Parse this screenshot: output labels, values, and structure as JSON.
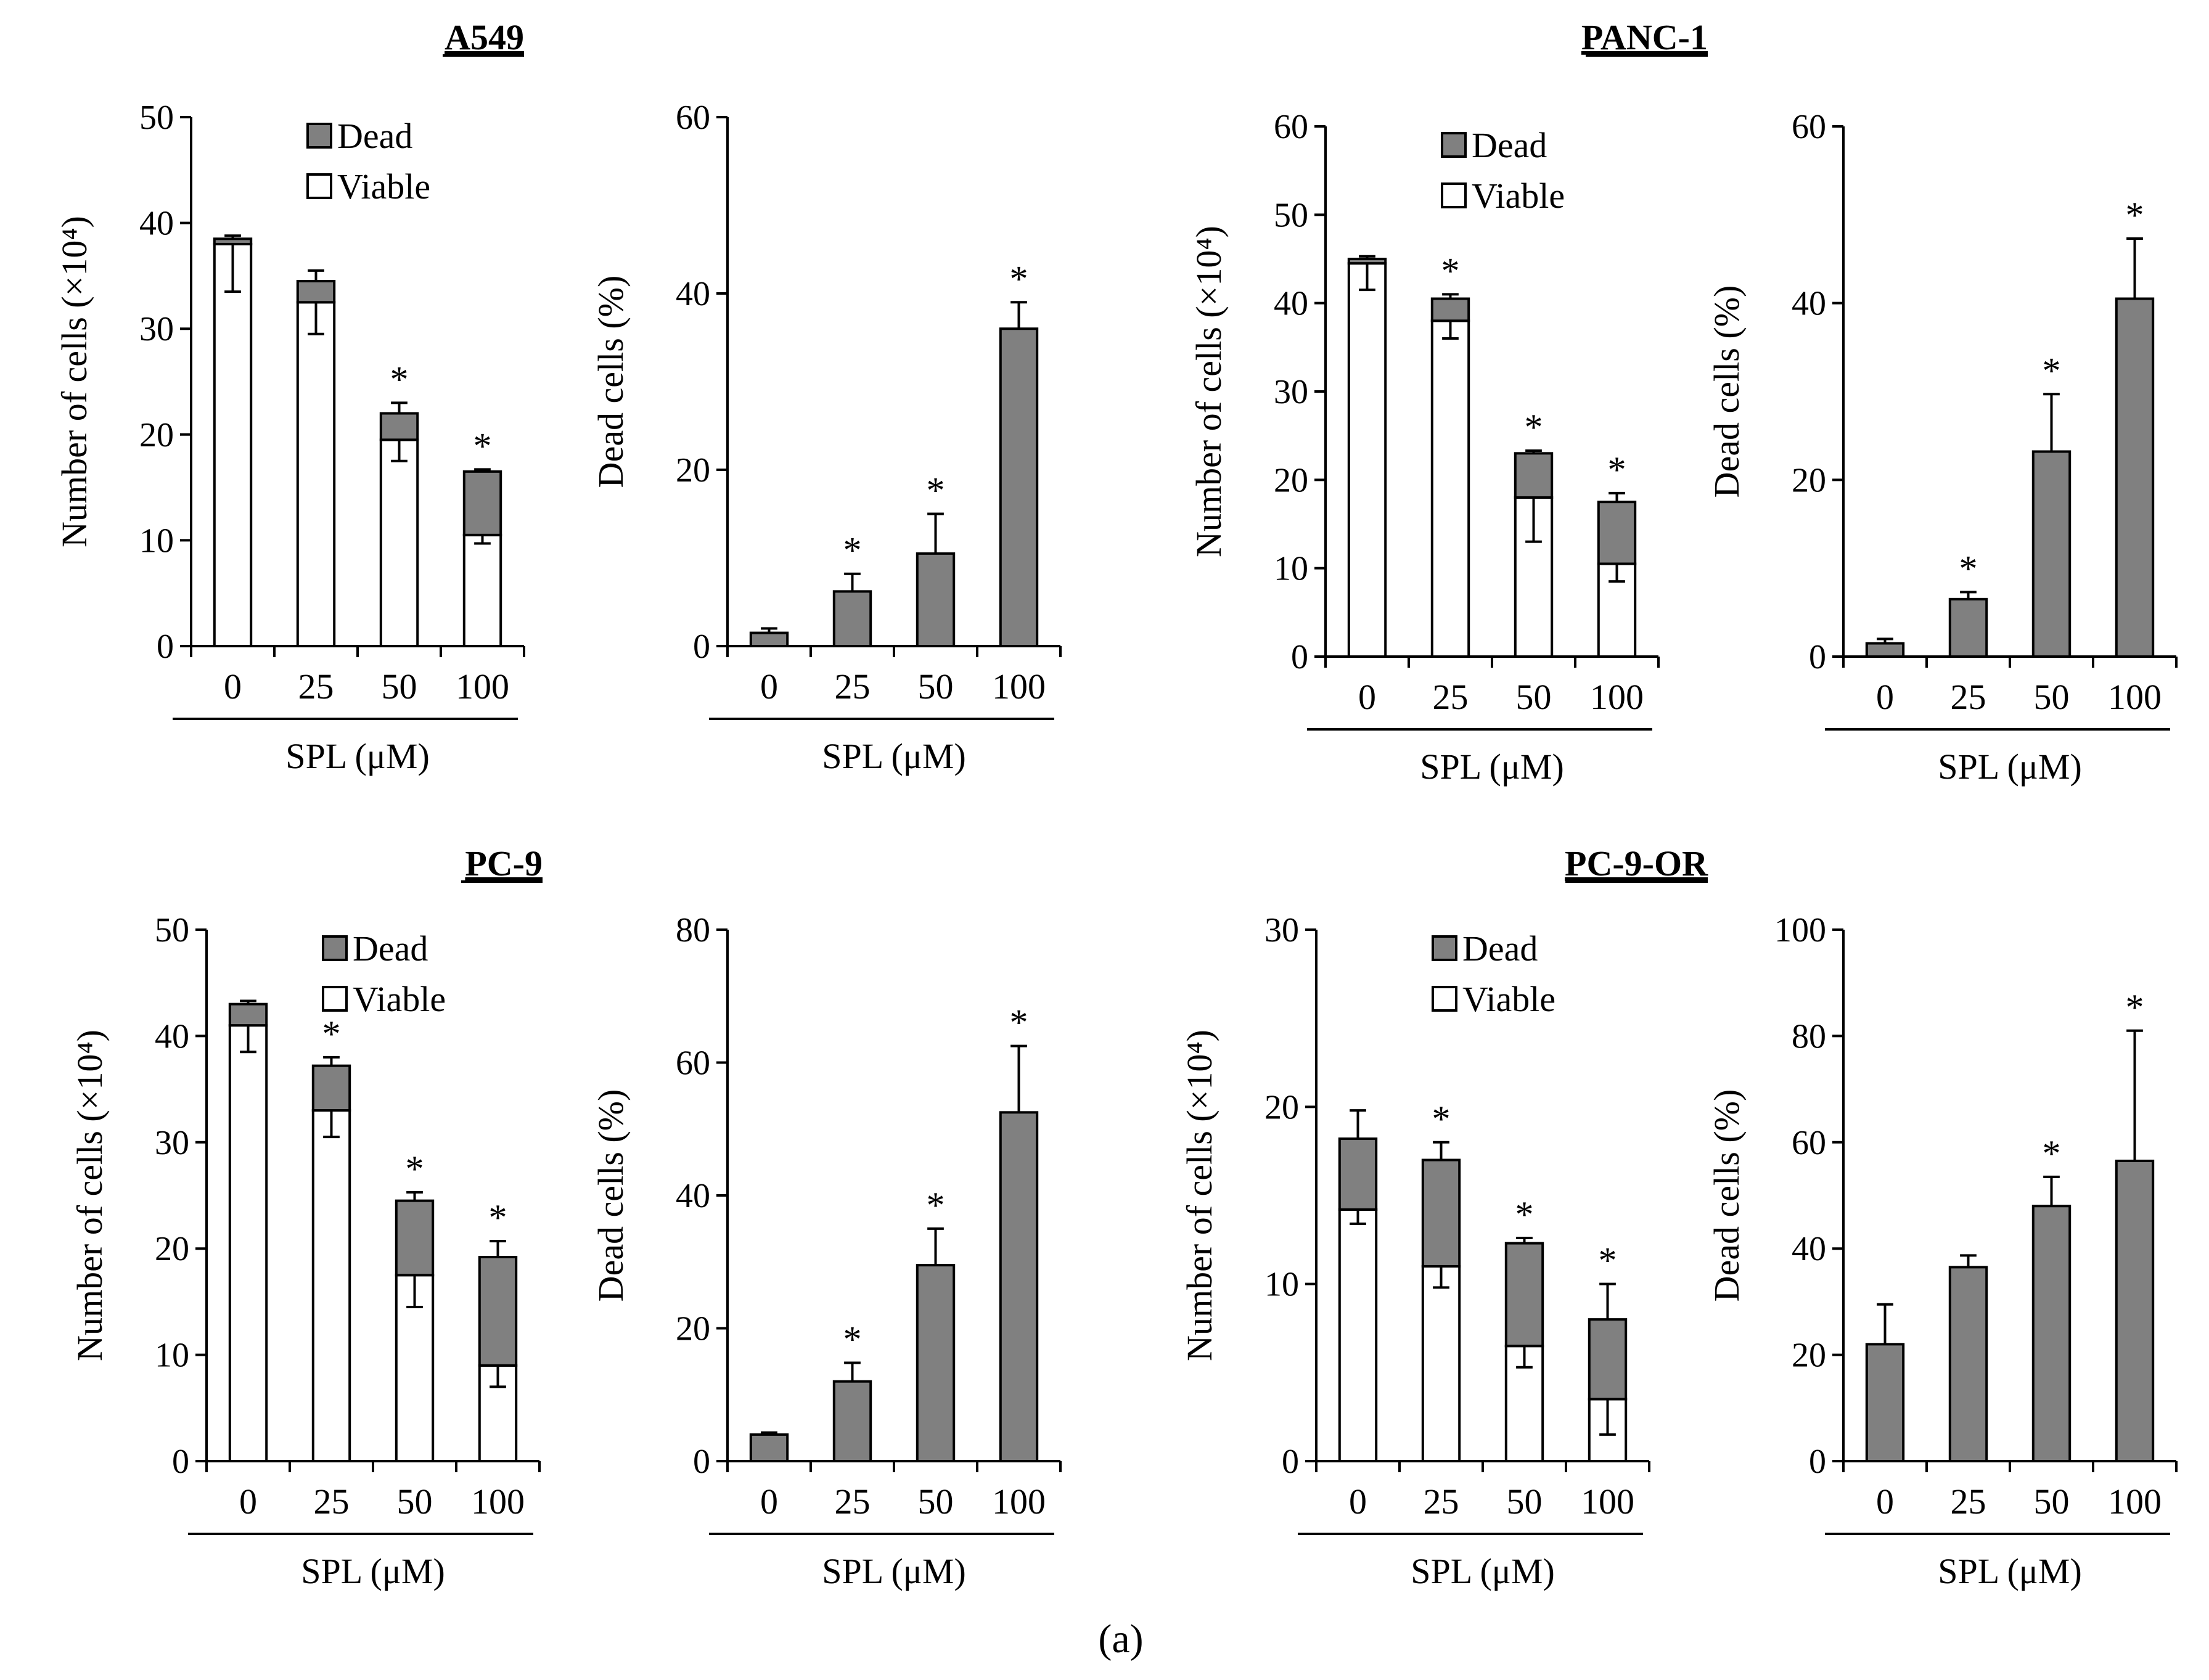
{
  "figure_label": "(a)",
  "colors": {
    "dead": "#808080",
    "viable": "#ffffff",
    "axis": "#000000"
  },
  "chart_data": [
    {
      "panel": "A549",
      "kind": "count",
      "type": "bar",
      "stacked": true,
      "title": "A549",
      "ylabel": "Number of cells (×10⁴)",
      "xlabel": "SPL (μM)",
      "categories": [
        "0",
        "25",
        "50",
        "100"
      ],
      "ylim": [
        0,
        50
      ],
      "yticks": [
        "0",
        "10",
        "20",
        "30",
        "40",
        "50"
      ],
      "legend": [
        "Dead",
        "Viable"
      ],
      "legend_position": "top-right",
      "series": [
        {
          "name": "Viable",
          "values": [
            38,
            32.5,
            19.5,
            10.5
          ],
          "error": [
            4.5,
            3,
            2,
            0.8
          ]
        },
        {
          "name": "Dead",
          "values": [
            0.5,
            2,
            2.5,
            6
          ],
          "error": [
            0.3,
            1,
            1,
            0.2
          ]
        }
      ],
      "significance": [
        "",
        "",
        "*",
        "*"
      ]
    },
    {
      "panel": "A549",
      "kind": "percent",
      "type": "bar",
      "ylabel": "Dead cells (%)",
      "xlabel": "SPL (μM)",
      "categories": [
        "0",
        "25",
        "50",
        "100"
      ],
      "ylim": [
        0,
        60
      ],
      "yticks": [
        "0",
        "20",
        "40",
        "60"
      ],
      "series": [
        {
          "name": "Dead",
          "values": [
            1.5,
            6.2,
            10.5,
            36
          ],
          "error": [
            0.5,
            2,
            4.5,
            3
          ]
        }
      ],
      "significance": [
        "",
        "*",
        "*",
        "*"
      ]
    },
    {
      "panel": "PANC-1",
      "kind": "count",
      "type": "bar",
      "stacked": true,
      "title": "PANC-1",
      "ylabel": "Number of cells (×10⁴)",
      "xlabel": "SPL (μM)",
      "categories": [
        "0",
        "25",
        "50",
        "100"
      ],
      "ylim": [
        0,
        60
      ],
      "yticks": [
        "0",
        "10",
        "20",
        "30",
        "40",
        "50",
        "60"
      ],
      "legend": [
        "Dead",
        "Viable"
      ],
      "legend_position": "top-right",
      "series": [
        {
          "name": "Viable",
          "values": [
            44.5,
            38,
            18,
            10.5
          ],
          "error": [
            3,
            2,
            5,
            2
          ]
        },
        {
          "name": "Dead",
          "values": [
            0.5,
            2.5,
            5,
            7
          ],
          "error": [
            0.3,
            0.5,
            0.3,
            1
          ]
        }
      ],
      "significance": [
        "",
        "*",
        "*",
        "*"
      ]
    },
    {
      "panel": "PANC-1",
      "kind": "percent",
      "type": "bar",
      "ylabel": "Dead cells (%)",
      "xlabel": "SPL (μM)",
      "categories": [
        "0",
        "25",
        "50",
        "100"
      ],
      "ylim": [
        0,
        60
      ],
      "yticks": [
        "0",
        "20",
        "40",
        "60"
      ],
      "series": [
        {
          "name": "Dead",
          "values": [
            1.5,
            6.5,
            23.2,
            40.5
          ],
          "error": [
            0.5,
            0.8,
            6.5,
            6.8
          ]
        }
      ],
      "significance": [
        "",
        "*",
        "*",
        "*"
      ]
    },
    {
      "panel": "PC-9",
      "kind": "count",
      "type": "bar",
      "stacked": true,
      "title": "PC-9",
      "ylabel": "Number of cells (×10⁴)",
      "xlabel": "SPL (μM)",
      "categories": [
        "0",
        "25",
        "50",
        "100"
      ],
      "ylim": [
        0,
        50
      ],
      "yticks": [
        "0",
        "10",
        "20",
        "30",
        "40",
        "50"
      ],
      "legend": [
        "Dead",
        "Viable"
      ],
      "legend_position": "top-right",
      "series": [
        {
          "name": "Viable",
          "values": [
            41,
            33,
            17.5,
            9
          ],
          "error": [
            2.5,
            2.5,
            3,
            2
          ]
        },
        {
          "name": "Dead",
          "values": [
            2,
            4.2,
            7,
            10.2
          ],
          "error": [
            0.3,
            0.8,
            0.8,
            1.5
          ]
        }
      ],
      "significance": [
        "",
        "*",
        "*",
        "*"
      ]
    },
    {
      "panel": "PC-9",
      "kind": "percent",
      "type": "bar",
      "ylabel": "Dead cells (%)",
      "xlabel": "SPL (μM)",
      "categories": [
        "0",
        "25",
        "50",
        "100"
      ],
      "ylim": [
        0,
        80
      ],
      "yticks": [
        "0",
        "20",
        "40",
        "60",
        "80"
      ],
      "series": [
        {
          "name": "Dead",
          "values": [
            4,
            12,
            29.5,
            52.5
          ],
          "error": [
            0.3,
            2.8,
            5.5,
            10
          ]
        }
      ],
      "significance": [
        "",
        "*",
        "*",
        "*"
      ]
    },
    {
      "panel": "PC-9-OR",
      "kind": "count",
      "type": "bar",
      "stacked": true,
      "title": "PC-9-OR",
      "ylabel": "Number of cells (×10⁴)",
      "xlabel": "SPL (μM)",
      "categories": [
        "0",
        "25",
        "50",
        "100"
      ],
      "ylim": [
        0,
        30
      ],
      "yticks": [
        "0",
        "10",
        "20",
        "30"
      ],
      "legend": [
        "Dead",
        "Viable"
      ],
      "legend_position": "top-right",
      "series": [
        {
          "name": "Viable",
          "values": [
            14.2,
            11,
            6.5,
            3.5
          ],
          "error": [
            0.8,
            1.2,
            1.2,
            2
          ]
        },
        {
          "name": "Dead",
          "values": [
            4,
            6,
            5.8,
            4.5
          ],
          "error": [
            1.6,
            1,
            0.3,
            2
          ]
        }
      ],
      "significance": [
        "",
        "*",
        "*",
        "*"
      ]
    },
    {
      "panel": "PC-9-OR",
      "kind": "percent",
      "type": "bar",
      "ylabel": "Dead cells (%)",
      "xlabel": "SPL (μM)",
      "categories": [
        "0",
        "25",
        "50",
        "100"
      ],
      "ylim": [
        0,
        100
      ],
      "yticks": [
        "0",
        "20",
        "40",
        "60",
        "80",
        "100"
      ],
      "series": [
        {
          "name": "Dead",
          "values": [
            22,
            36.5,
            48,
            56.5
          ],
          "error": [
            7.5,
            2.2,
            5.5,
            24.5
          ]
        }
      ],
      "significance": [
        "",
        "",
        "*",
        "*"
      ]
    }
  ]
}
